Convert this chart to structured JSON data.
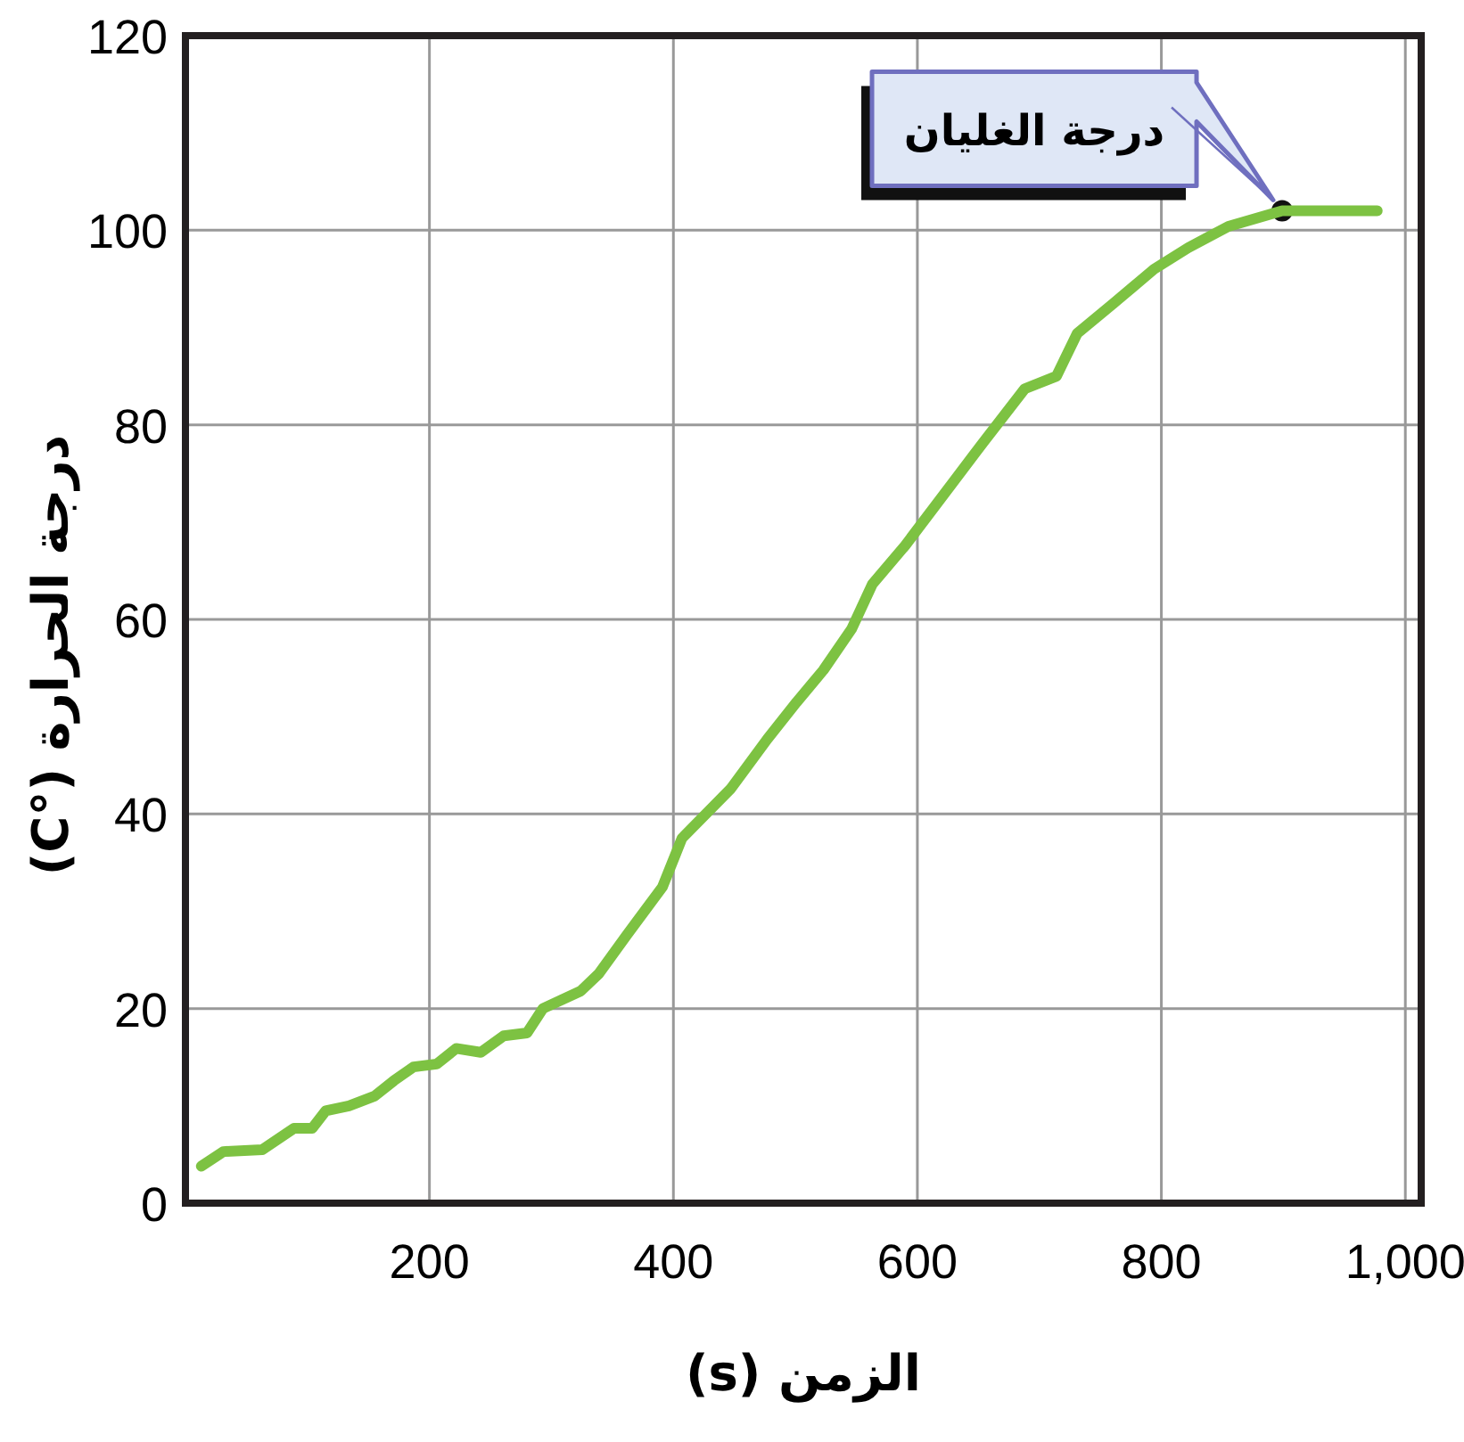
{
  "chart_data": {
    "type": "line",
    "xlabel": "الزمن (s)",
    "ylabel": "درجة الحرارة (°C)",
    "x": [
      13,
      31,
      63,
      89,
      104,
      115,
      134,
      155,
      171,
      187,
      206,
      222,
      242,
      261,
      280,
      293,
      324,
      339,
      362,
      391,
      407,
      447,
      477,
      501,
      523,
      546,
      563,
      590,
      628,
      654,
      688,
      714,
      731,
      761,
      794,
      822,
      855,
      899,
      977
    ],
    "values": [
      3.8,
      5.3,
      5.5,
      7.7,
      7.7,
      9.5,
      10,
      11,
      12.6,
      14,
      14.3,
      15.9,
      15.5,
      17.2,
      17.5,
      20,
      21.8,
      23.6,
      27.6,
      32.5,
      37.5,
      42.6,
      47.7,
      51.5,
      54.8,
      59,
      63.6,
      67.6,
      73.9,
      78.2,
      83.7,
      85,
      89.4,
      92.5,
      96,
      98.2,
      100.4,
      102,
      102
    ],
    "color": "#7dc242",
    "xlim": [
      0,
      1013
    ],
    "ylim": [
      0,
      120
    ],
    "xticks": [
      200,
      400,
      600,
      800,
      {
        "value": 1000,
        "label": "1,000"
      }
    ],
    "yticks": [
      0,
      20,
      40,
      60,
      80,
      100,
      120
    ],
    "grid": true,
    "annotations": [
      {
        "text": "درجة الغليان",
        "x": 899,
        "y": 102
      }
    ]
  }
}
